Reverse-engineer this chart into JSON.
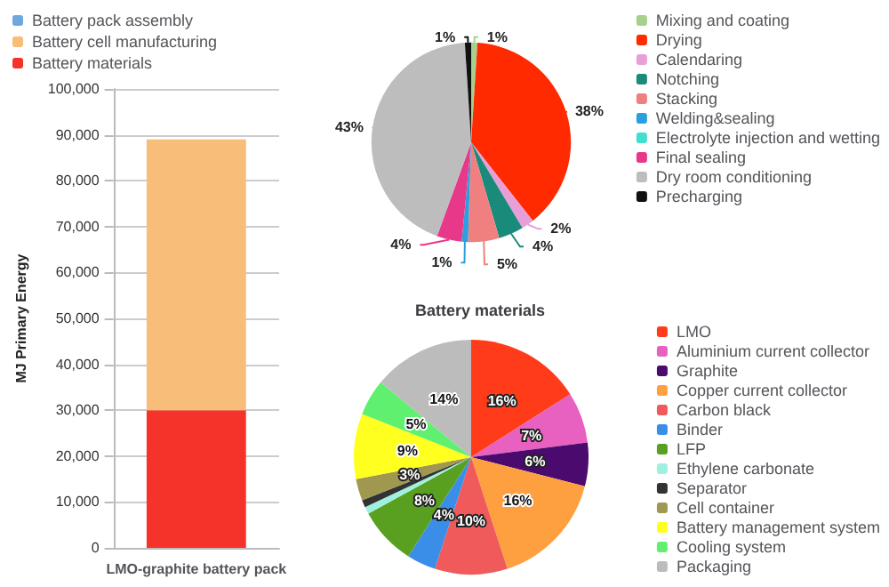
{
  "chart_data": [
    {
      "type": "bar",
      "stacked": true,
      "categories": [
        "LMO-graphite battery pack"
      ],
      "ylabel": "MJ Primary Energy",
      "ylim": [
        0,
        100000
      ],
      "yticks": [
        {
          "value": 0,
          "label": "0"
        },
        {
          "value": 10000,
          "label": "10,000"
        },
        {
          "value": 20000,
          "label": "20,000"
        },
        {
          "value": 30000,
          "label": "30,000"
        },
        {
          "value": 40000,
          "label": "40,000"
        },
        {
          "value": 50000,
          "label": "50,000"
        },
        {
          "value": 60000,
          "label": "60,000"
        },
        {
          "value": 70000,
          "label": "70,000"
        },
        {
          "value": 80000,
          "label": "80,000"
        },
        {
          "value": 90000,
          "label": "90,000"
        },
        {
          "value": 100000,
          "label": "100,000"
        }
      ],
      "grid": "y",
      "legend": "top left",
      "series": [
        {
          "name": "Battery materials",
          "color": "#f5332a",
          "values": [
            30000
          ]
        },
        {
          "name": "Battery cell manufacturing",
          "color": "#f8bd78",
          "values": [
            59000
          ]
        },
        {
          "name": "Battery pack assembly",
          "color": "#6fa8dc",
          "values": [
            0
          ]
        }
      ]
    },
    {
      "type": "pie",
      "legend": "right",
      "categories": [
        "Mixing and coating",
        "Drying",
        "Calendaring",
        "Notching",
        "Stacking",
        "Welding&sealing",
        "Electrolyte injection and wetting",
        "Final sealing",
        "Dry room conditioning",
        "Precharging"
      ],
      "values": [
        1,
        38,
        2,
        4,
        5,
        1,
        0,
        4,
        43,
        1
      ],
      "value_labels": [
        "1%",
        "38%",
        "2%",
        "4%",
        "5%",
        "1%",
        null,
        "4%",
        "43%",
        "1%"
      ],
      "colors": [
        "#a8d08d",
        "#ff2a00",
        "#e89ed8",
        "#1a8a7a",
        "#f08080",
        "#2aa0e0",
        "#40e0d0",
        "#e8388a",
        "#bdbdbd",
        "#111111"
      ]
    },
    {
      "type": "pie",
      "title": "Battery materials",
      "legend": "right",
      "categories": [
        "LMO",
        "Aluminium current collector",
        "Graphite",
        "Copper current collector",
        "Carbon black",
        "Binder",
        "LFP",
        "Ethylene carbonate",
        "Separator",
        "Cell container",
        "Battery management system",
        "Cooling system",
        "Packaging"
      ],
      "values": [
        16,
        7,
        6,
        16,
        10,
        4,
        8,
        1,
        1,
        3,
        9,
        5,
        14
      ],
      "value_labels": [
        "16%",
        "7%",
        "6%",
        "16%",
        "10%",
        "4%",
        "8%",
        null,
        null,
        "3%",
        "9%",
        "5%",
        "14%"
      ],
      "colors": [
        "#ff3b1a",
        "#e860c0",
        "#4b0a6e",
        "#ffa040",
        "#f05a5a",
        "#3a8ee8",
        "#5aa020",
        "#a0f0e0",
        "#333333",
        "#a09850",
        "#ffff20",
        "#60f070",
        "#bcbcbc"
      ]
    }
  ]
}
